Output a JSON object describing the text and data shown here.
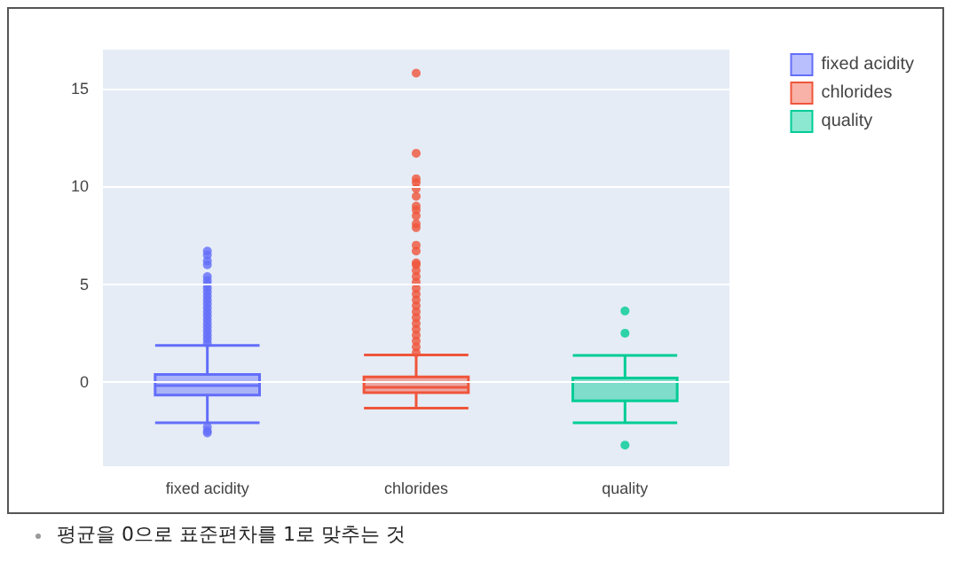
{
  "chart_data": {
    "type": "box",
    "categories": [
      "fixed acidity",
      "chlorides",
      "quality"
    ],
    "series": [
      {
        "name": "fixed acidity",
        "color": "#636efa",
        "boxes": [
          {
            "low": -2.08,
            "q1": -0.66,
            "median": -0.18,
            "q3": 0.39,
            "high": 1.87,
            "outliers": [
              2.0,
              2.2,
              2.4,
              2.6,
              2.8,
              3.0,
              3.2,
              3.4,
              3.6,
              3.8,
              4.0,
              4.2,
              4.4,
              4.6,
              4.8,
              5.0,
              5.2,
              5.4,
              6.0,
              6.2,
              6.5,
              6.7,
              -2.3,
              -2.5,
              -2.6
            ]
          },
          null,
          null
        ]
      },
      {
        "name": "chlorides",
        "color": "#ef553b",
        "boxes": [
          null,
          {
            "low": -1.33,
            "q1": -0.54,
            "median": -0.27,
            "q3": 0.27,
            "high": 1.39,
            "outliers": [
              1.5,
              1.8,
              2.1,
              2.4,
              2.7,
              3.0,
              3.3,
              3.6,
              3.9,
              4.2,
              4.5,
              4.8,
              5.1,
              5.4,
              5.7,
              6.0,
              6.1,
              6.7,
              7.0,
              7.9,
              8.1,
              8.5,
              8.8,
              9.0,
              9.5,
              9.9,
              10.2,
              10.4,
              11.7,
              15.8
            ]
          },
          null
        ]
      },
      {
        "name": "quality",
        "color": "#00cc96",
        "boxes": [
          null,
          null,
          {
            "low": -2.08,
            "q1": -0.96,
            "median": 0.21,
            "q3": 0.21,
            "high": 1.36,
            "outliers": [
              3.64,
              2.5,
              -3.22
            ]
          }
        ]
      }
    ],
    "ylim": [
      -4.3,
      17
    ],
    "yticks": [
      0,
      5,
      10,
      15
    ],
    "grid": "y",
    "legend": "top right",
    "annotations": [
      "평균을 0으로 표준편차를 1로 맞추는 것"
    ]
  }
}
